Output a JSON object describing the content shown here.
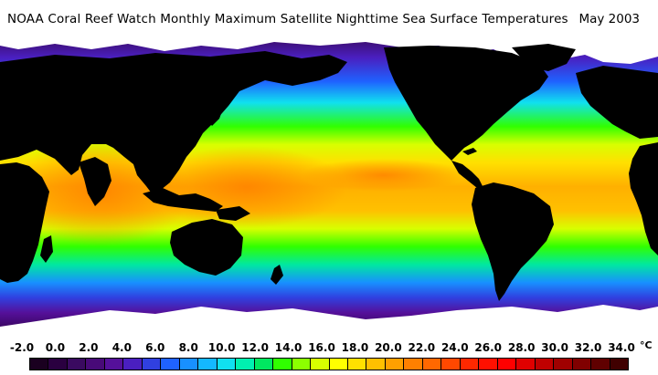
{
  "header": {
    "title": "NOAA Coral Reef Watch Monthly Maximum Satellite Nighttime Sea Surface Temperatures",
    "date": "May 2003"
  },
  "map": {
    "variable": "Sea Surface Temperature",
    "land_color": "#000000",
    "ice_color": "#ffffff"
  },
  "legend": {
    "unit": "°C",
    "ticks": [
      "-2.0",
      "0.0",
      "2.0",
      "4.0",
      "6.0",
      "8.0",
      "10.0",
      "12.0",
      "14.0",
      "16.0",
      "18.0",
      "20.0",
      "22.0",
      "24.0",
      "26.0",
      "28.0",
      "30.0",
      "32.0",
      "34.0"
    ],
    "colors": [
      "#1a0020",
      "#2a0040",
      "#3a0a60",
      "#480a78",
      "#55109a",
      "#4a1fc0",
      "#3040e0",
      "#1f62ff",
      "#1890ff",
      "#14b8ff",
      "#10e0f0",
      "#00f0b0",
      "#00e860",
      "#30ff00",
      "#8cff00",
      "#d8ff00",
      "#ffff00",
      "#ffe000",
      "#ffc000",
      "#ffa000",
      "#ff8000",
      "#ff6800",
      "#ff4800",
      "#ff2800",
      "#ff1000",
      "#ff0000",
      "#e00000",
      "#c00000",
      "#a00000",
      "#800000",
      "#600000",
      "#400000"
    ]
  }
}
